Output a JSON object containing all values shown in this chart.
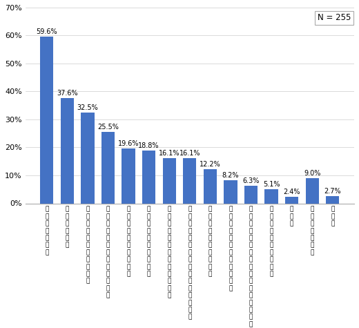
{
  "categories": [
    "元\n本\n保\n証\nが\nな\nい",
    "手\n数\n料\nが\n高\nい",
    "わ\nか\nり\nに\nく\nい\n運\n用\n実\n績\nが",
    "安\n心\nで\nき\nな\nい\n公\n社\n債\nに\n比\nべ\nて",
    "利\n回\nり\nが\nも\nの\nた\nり\nな\nい",
    "種\n類\nが\n多\nく\n選\n択\nに\n迷\nう",
    "面\n白\nさ\nに\n欠\nけ\nる\n株\n式\nに\n比\nべ\nて",
    "情\n報\nが\n少\nな\nい\n購\n入\n後\nの\n運\n用\nに\n関\nす\nる",
    "な\nん\nと\nな\nく\nな\nじ\nめ\nな\nい",
    "購\n入\n手\n続\nき\nが\nわ\nず\nら\nわ\nし\nい",
    "銀\n行\n等\nの\n店\n舗\nが\nな\nい\n近\nく\nに\n証\n券\n会\n社\n・",
    "ク\nロ\nー\nズ\nド\n期\n間\nが\nあ\nる",
    "そ\nの\n他",
    "よ\nく\nわ\nか\nら\nな\nい",
    "無\n回\n答"
  ],
  "values": [
    59.6,
    37.6,
    32.5,
    25.5,
    19.6,
    18.8,
    16.1,
    16.1,
    12.2,
    8.2,
    6.3,
    5.1,
    2.4,
    9.0,
    2.7
  ],
  "bar_color": "#4472C4",
  "ylim": [
    0,
    70
  ],
  "yticks": [
    0,
    10,
    20,
    30,
    40,
    50,
    60,
    70
  ],
  "n_label": "N = 255",
  "value_labels": [
    "59.6%",
    "37.6%",
    "32.5%",
    "25.5%",
    "19.6%",
    "18.8%",
    "16.1%",
    "16.1%",
    "12.2%",
    "8.2%",
    "6.3%",
    "5.1%",
    "2.4%",
    "9.0%",
    "2.7%"
  ],
  "background_color": "#ffffff",
  "grid_color": "#cccccc",
  "label_fontsize": 6.5,
  "value_fontsize": 7.0,
  "tick_fontsize": 8.0,
  "n_fontsize": 8.5
}
